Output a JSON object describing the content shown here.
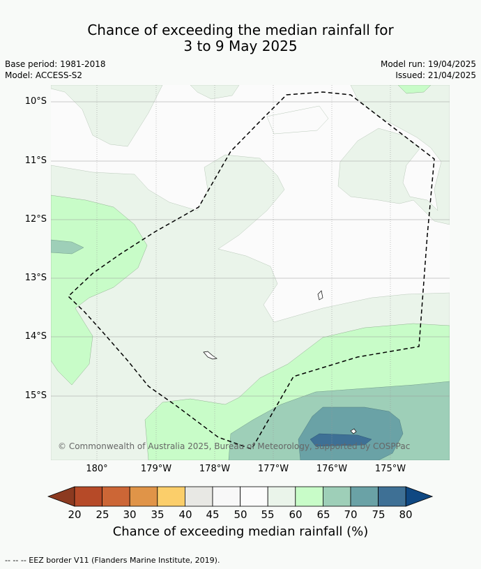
{
  "title_line1": "Chance of exceeding the median rainfall for",
  "title_line2": "3 to 9 May 2025",
  "meta": {
    "base_period": "Base period: 1981-2018",
    "model": "Model: ACCESS-S2",
    "model_run": "Model run: 19/04/2025",
    "issued": "Issued: 21/04/2025"
  },
  "latitudes": [
    "10°S",
    "11°S",
    "12°S",
    "13°S",
    "14°S",
    "15°S"
  ],
  "longitudes": [
    "180°",
    "179°W",
    "178°W",
    "177°W",
    "176°W",
    "175°W"
  ],
  "copyright": "© Commonwealth of Australia 2025, Bureau of Meteorology, supported by COSPPac",
  "colorbar": {
    "labels": [
      "20",
      "25",
      "30",
      "35",
      "40",
      "45",
      "50",
      "55",
      "60",
      "65",
      "70",
      "75",
      "80"
    ],
    "colors": [
      "#8c3a20",
      "#b64a28",
      "#cc6636",
      "#e09448",
      "#fbce6a",
      "#e8e8e4",
      "#f8f8f8",
      "#fbfbfb",
      "#eaf4ea",
      "#c8fcc8",
      "#9ecfb8",
      "#6aa2a6",
      "#3e7095",
      "#0f4882"
    ],
    "title": "Chance of exceeding median rainfall (%)"
  },
  "footer": "--  --  -- EEZ border V11 (Flanders Marine Institute, 2019)."
}
